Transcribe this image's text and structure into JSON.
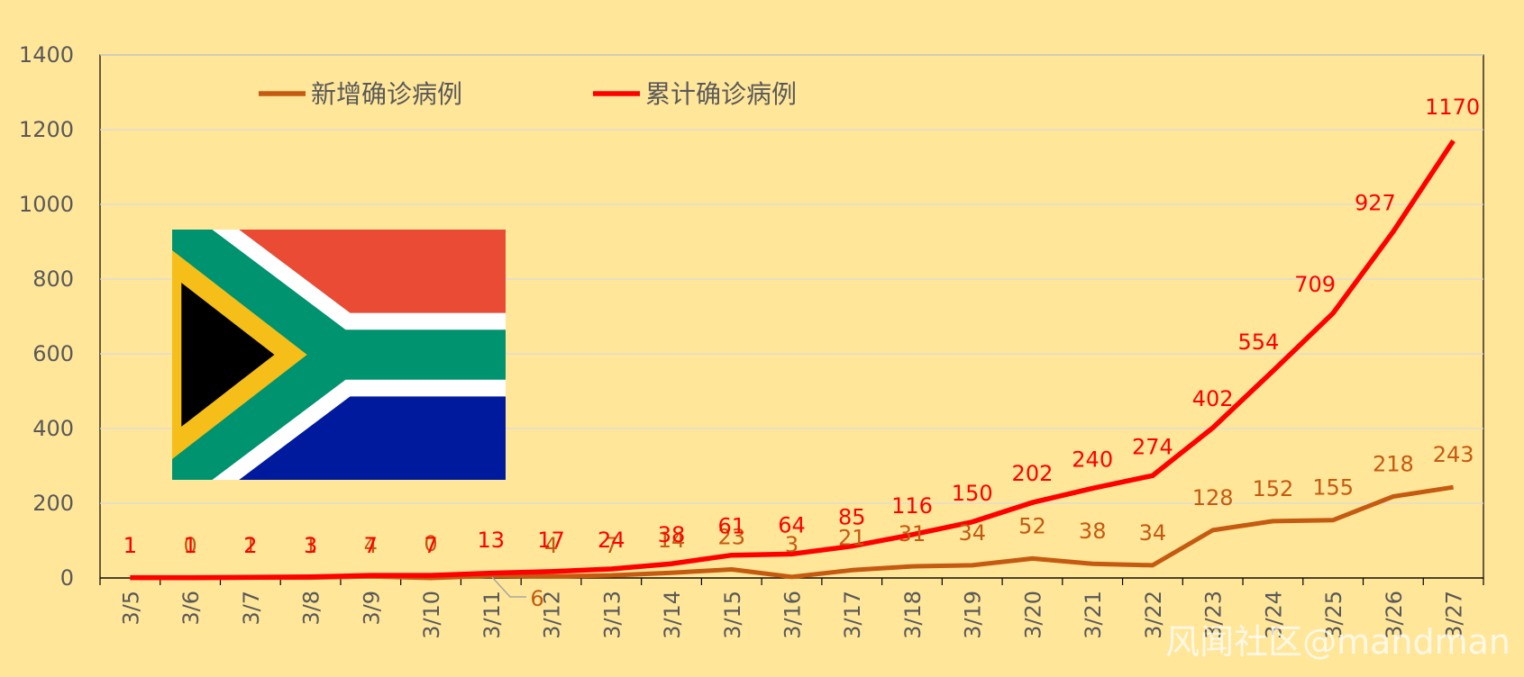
{
  "chart_data": {
    "type": "line",
    "title": "",
    "xlabel": "",
    "ylabel": "",
    "ylim": [
      0,
      1400
    ],
    "yticks": [
      0,
      200,
      400,
      600,
      800,
      1000,
      1200,
      1400
    ],
    "grid": true,
    "legend_position": "top-left",
    "categories": [
      "3/5",
      "3/6",
      "3/7",
      "3/8",
      "3/9",
      "3/10",
      "3/11",
      "3/12",
      "3/13",
      "3/14",
      "3/15",
      "3/16",
      "3/17",
      "3/18",
      "3/19",
      "3/20",
      "3/21",
      "3/22",
      "3/23",
      "3/24",
      "3/25",
      "3/26",
      "3/27"
    ],
    "series": [
      {
        "name": "新增确诊病例",
        "color": "#C55A11",
        "values": [
          1,
          0,
          1,
          1,
          4,
          0,
          6,
          4,
          7,
          14,
          23,
          3,
          21,
          31,
          34,
          52,
          38,
          34,
          128,
          152,
          155,
          218,
          243
        ]
      },
      {
        "name": "累计确诊病例",
        "color": "#FF0000",
        "values": [
          1,
          1,
          2,
          3,
          7,
          7,
          13,
          17,
          24,
          38,
          61,
          64,
          85,
          116,
          150,
          202,
          240,
          274,
          402,
          554,
          709,
          927,
          1170
        ]
      }
    ]
  },
  "decoration": {
    "flag_icon": "south-africa-flag",
    "watermark": "风闻社区@mandman"
  }
}
